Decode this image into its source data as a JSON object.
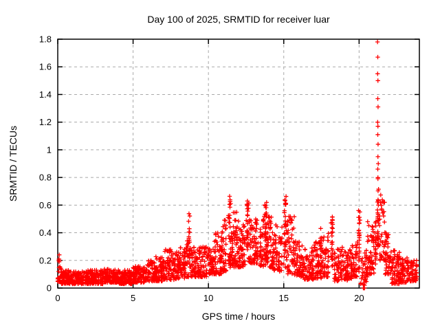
{
  "chart_data": {
    "type": "scatter",
    "title": "Day 100 of 2025, SRMTID for receiver luar",
    "xlabel": "GPS time / hours",
    "ylabel": "SRMTID / TECUs",
    "xlim": [
      0,
      24
    ],
    "ylim": [
      0,
      1.8
    ],
    "xticks": [
      0,
      5,
      10,
      15,
      20
    ],
    "yticks": [
      0,
      0.2,
      0.4,
      0.6,
      0.8,
      1,
      1.2,
      1.4,
      1.6,
      1.8
    ],
    "grid": true,
    "legend": "none",
    "marker": "plus",
    "marker_color": "#ff0000",
    "grid_color": "#a8a8a8",
    "axis_color": "#000000",
    "background_color": "#ffffff",
    "seed": 20251,
    "band_format": [
      "x_start_hour",
      "x_end_hour",
      "y_min_TECU",
      "y_max_TECU",
      "point_count"
    ],
    "bands": [
      [
        0.0,
        0.25,
        0.04,
        0.17,
        22
      ],
      [
        0.25,
        1.0,
        0.03,
        0.13,
        85
      ],
      [
        1.0,
        2.0,
        0.03,
        0.12,
        115
      ],
      [
        2.0,
        3.0,
        0.03,
        0.13,
        115
      ],
      [
        3.0,
        4.0,
        0.04,
        0.14,
        115
      ],
      [
        4.0,
        5.0,
        0.03,
        0.13,
        115
      ],
      [
        5.0,
        5.75,
        0.04,
        0.16,
        85
      ],
      [
        5.75,
        6.5,
        0.05,
        0.2,
        80
      ],
      [
        6.5,
        7.0,
        0.05,
        0.24,
        55
      ],
      [
        7.0,
        7.5,
        0.06,
        0.28,
        55
      ],
      [
        7.5,
        8.0,
        0.06,
        0.27,
        55
      ],
      [
        8.0,
        8.5,
        0.07,
        0.3,
        58
      ],
      [
        8.5,
        8.68,
        0.08,
        0.35,
        18
      ],
      [
        8.8,
        9.3,
        0.08,
        0.3,
        52
      ],
      [
        9.3,
        9.9,
        0.08,
        0.31,
        62
      ],
      [
        9.9,
        10.4,
        0.1,
        0.29,
        56
      ],
      [
        10.4,
        10.9,
        0.1,
        0.4,
        62
      ],
      [
        10.9,
        11.2,
        0.12,
        0.5,
        40
      ],
      [
        11.5,
        12.0,
        0.15,
        0.55,
        62
      ],
      [
        12.0,
        12.45,
        0.15,
        0.46,
        55
      ],
      [
        12.7,
        13.3,
        0.18,
        0.5,
        66
      ],
      [
        13.4,
        14.3,
        0.15,
        0.52,
        95
      ],
      [
        14.3,
        14.9,
        0.12,
        0.46,
        62
      ],
      [
        15.2,
        15.7,
        0.1,
        0.55,
        52
      ],
      [
        15.7,
        16.3,
        0.08,
        0.36,
        62
      ],
      [
        16.3,
        17.0,
        0.06,
        0.3,
        70
      ],
      [
        17.0,
        17.5,
        0.07,
        0.34,
        50
      ],
      [
        17.5,
        18.0,
        0.08,
        0.4,
        50
      ],
      [
        18.35,
        18.9,
        0.05,
        0.3,
        55
      ],
      [
        18.9,
        19.5,
        0.05,
        0.28,
        60
      ],
      [
        19.5,
        19.9,
        0.08,
        0.35,
        42
      ],
      [
        20.1,
        20.55,
        0.02,
        0.28,
        40
      ],
      [
        20.55,
        21.0,
        0.1,
        0.48,
        52
      ],
      [
        21.35,
        21.7,
        0.2,
        0.68,
        36
      ],
      [
        21.7,
        22.1,
        0.1,
        0.42,
        46
      ],
      [
        22.1,
        22.7,
        0.03,
        0.28,
        66
      ],
      [
        22.7,
        23.3,
        0.04,
        0.22,
        66
      ],
      [
        23.3,
        23.85,
        0.05,
        0.2,
        56
      ]
    ],
    "spike_format": [
      "x_hour",
      "y_min_TECU",
      "y_max_TECU",
      "point_count",
      "x_jitter_hours"
    ],
    "spikes": [
      [
        8.72,
        0.12,
        0.57,
        22,
        0.06
      ],
      [
        11.4,
        0.15,
        0.7,
        36,
        0.12
      ],
      [
        12.6,
        0.2,
        0.65,
        30,
        0.1
      ],
      [
        13.85,
        0.2,
        0.62,
        28,
        0.12
      ],
      [
        15.1,
        0.15,
        0.72,
        36,
        0.1
      ],
      [
        17.45,
        0.1,
        0.46,
        14,
        0.05
      ],
      [
        18.2,
        0.1,
        0.55,
        26,
        0.08
      ],
      [
        20.0,
        0.1,
        0.57,
        26,
        0.08
      ],
      [
        21.1,
        0.15,
        0.5,
        20,
        0.06
      ],
      [
        21.25,
        0.3,
        0.82,
        32,
        0.05
      ]
    ],
    "point_format": [
      "x_hour",
      "y_TECU"
    ],
    "points": [
      [
        21.22,
        1.78
      ],
      [
        21.24,
        1.67
      ],
      [
        21.23,
        1.55
      ],
      [
        21.25,
        1.5
      ],
      [
        21.24,
        1.37
      ],
      [
        21.26,
        1.31
      ],
      [
        21.23,
        1.2
      ],
      [
        21.25,
        1.17
      ],
      [
        21.24,
        1.11
      ],
      [
        21.26,
        1.04
      ],
      [
        21.25,
        0.95
      ],
      [
        21.27,
        0.9
      ],
      [
        21.24,
        0.86
      ],
      [
        20.28,
        0.0
      ],
      [
        20.33,
        0.0
      ],
      [
        20.36,
        0.0
      ],
      [
        0.08,
        0.21
      ],
      [
        0.1,
        0.24
      ],
      [
        0.09,
        0.19
      ],
      [
        0.11,
        0.2
      ],
      [
        0.07,
        0.2
      ]
    ]
  }
}
